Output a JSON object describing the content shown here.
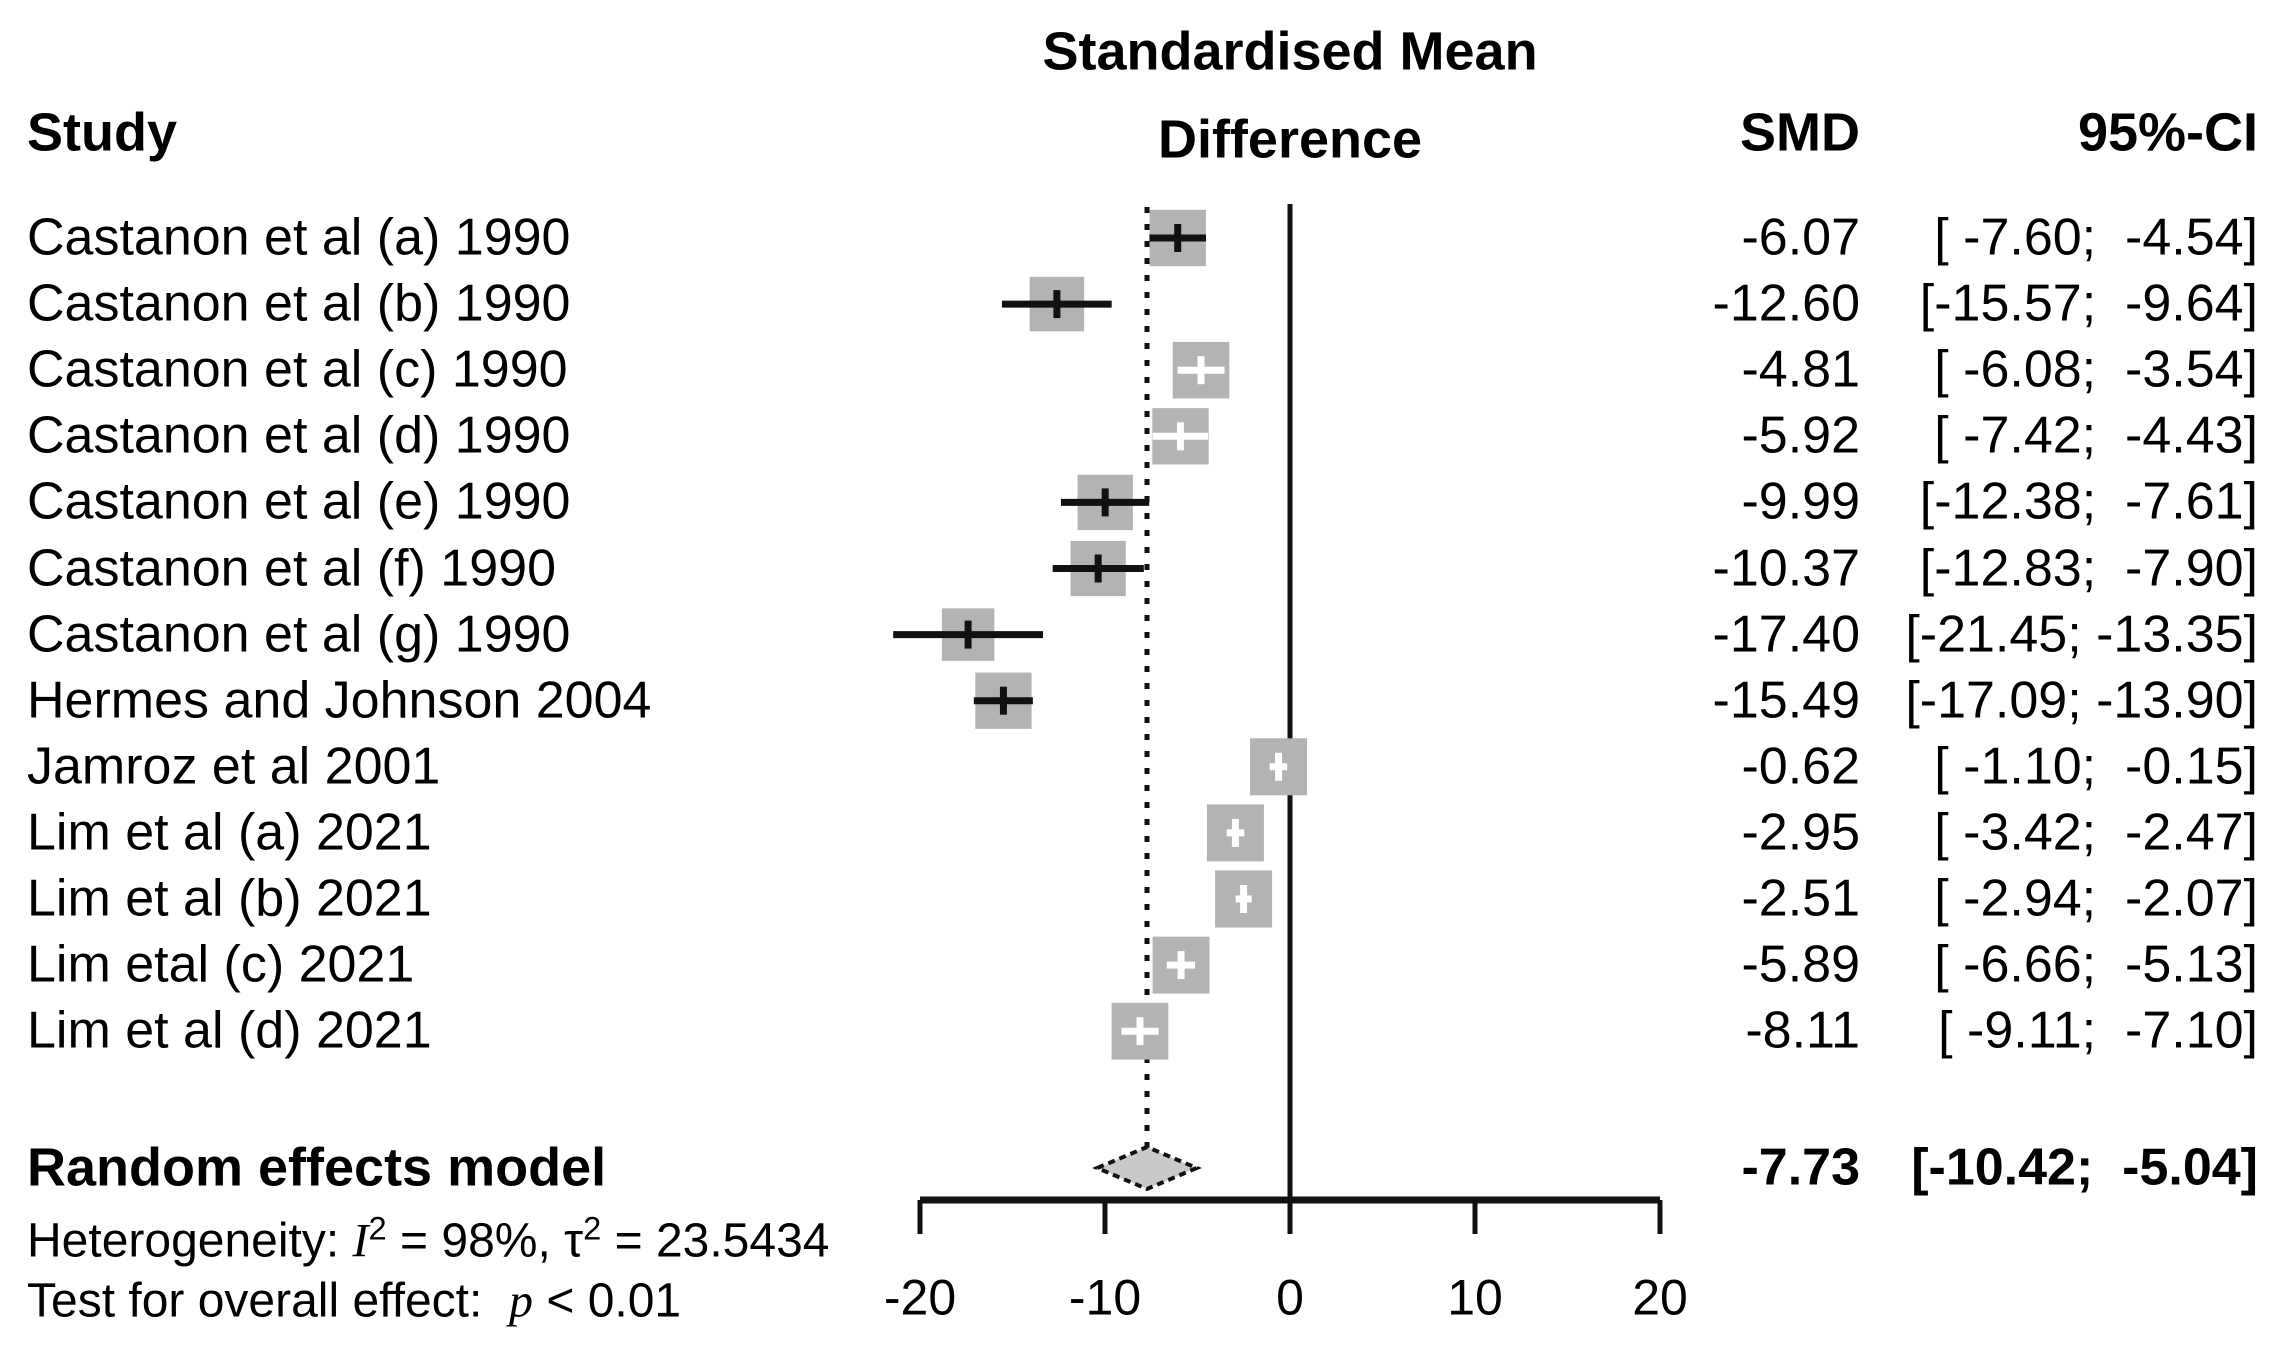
{
  "headers": {
    "study": "Study",
    "effect_line1": "Standardised Mean",
    "effect_line2": "Difference",
    "smd": "SMD",
    "ci": "95%-CI"
  },
  "chart_data": {
    "type": "forest",
    "effect_measure": "Standardised Mean Difference",
    "xlim": [
      -21.5,
      20
    ],
    "x_ticks": [
      {
        "value": -20,
        "label": "-20"
      },
      {
        "value": -10,
        "label": "-10"
      },
      {
        "value": 0,
        "label": "0"
      },
      {
        "value": 10,
        "label": "10"
      },
      {
        "value": 20,
        "label": "20"
      }
    ],
    "zero_line_at": 0,
    "dashed_line_at": -7.73,
    "studies": [
      {
        "label": "Castanon et al (a) 1990",
        "smd": -6.07,
        "ci_lo": -7.6,
        "ci_hi": -4.54,
        "smd_text": "-6.07",
        "ci_text": "[ -7.60;  -4.54]"
      },
      {
        "label": "Castanon et al (b) 1990",
        "smd": -12.6,
        "ci_lo": -15.57,
        "ci_hi": -9.64,
        "smd_text": "-12.60",
        "ci_text": "[-15.57;  -9.64]"
      },
      {
        "label": "Castanon et al (c) 1990",
        "smd": -4.81,
        "ci_lo": -6.08,
        "ci_hi": -3.54,
        "smd_text": "-4.81",
        "ci_text": "[ -6.08;  -3.54]"
      },
      {
        "label": "Castanon et al (d) 1990",
        "smd": -5.92,
        "ci_lo": -7.42,
        "ci_hi": -4.43,
        "smd_text": "-5.92",
        "ci_text": "[ -7.42;  -4.43]"
      },
      {
        "label": "Castanon et al (e) 1990",
        "smd": -9.99,
        "ci_lo": -12.38,
        "ci_hi": -7.61,
        "smd_text": "-9.99",
        "ci_text": "[-12.38;  -7.61]"
      },
      {
        "label": "Castanon et al (f) 1990",
        "smd": -10.37,
        "ci_lo": -12.83,
        "ci_hi": -7.9,
        "smd_text": "-10.37",
        "ci_text": "[-12.83;  -7.90]"
      },
      {
        "label": "Castanon et al (g) 1990",
        "smd": -17.4,
        "ci_lo": -21.45,
        "ci_hi": -13.35,
        "smd_text": "-17.40",
        "ci_text": "[-21.45; -13.35]"
      },
      {
        "label": "Hermes and Johnson 2004",
        "smd": -15.49,
        "ci_lo": -17.09,
        "ci_hi": -13.9,
        "smd_text": "-15.49",
        "ci_text": "[-17.09; -13.90]"
      },
      {
        "label": "Jamroz et al 2001",
        "smd": -0.62,
        "ci_lo": -1.1,
        "ci_hi": -0.15,
        "smd_text": "-0.62",
        "ci_text": "[ -1.10;  -0.15]"
      },
      {
        "label": "Lim et al (a) 2021",
        "smd": -2.95,
        "ci_lo": -3.42,
        "ci_hi": -2.47,
        "smd_text": "-2.95",
        "ci_text": "[ -3.42;  -2.47]"
      },
      {
        "label": "Lim et al (b) 2021",
        "smd": -2.51,
        "ci_lo": -2.94,
        "ci_hi": -2.07,
        "smd_text": "-2.51",
        "ci_text": "[ -2.94;  -2.07]"
      },
      {
        "label": "Lim etal (c) 2021",
        "smd": -5.89,
        "ci_lo": -6.66,
        "ci_hi": -5.13,
        "smd_text": "-5.89",
        "ci_text": "[ -6.66;  -5.13]"
      },
      {
        "label": "Lim et al (d) 2021",
        "smd": -8.11,
        "ci_lo": -9.11,
        "ci_hi": -7.1,
        "smd_text": "-8.11",
        "ci_text": "[ -9.11;  -7.10]"
      }
    ],
    "summary": {
      "label": "Random effects model",
      "smd": -7.73,
      "ci_lo": -10.42,
      "ci_hi": -5.04,
      "smd_text": "-7.73",
      "ci_text": "[-10.42;  -5.04]"
    },
    "heterogeneity": {
      "I2": "98%",
      "tau2": "23.5434"
    },
    "overall_effect": "p < 0.01",
    "style": {
      "square_fill": "#b3b3b3",
      "diamond_fill": "#c9c9c9",
      "line_color": "#111111",
      "white_marker": "#ffffff",
      "background": "#ffffff"
    }
  },
  "footer": {
    "heterogeneity": {
      "prefix": "Heterogeneity: ",
      "stat1": "I",
      "stat1_sup": "2",
      "mid": " = 98%, ",
      "stat2": "τ",
      "stat2_sup": "2",
      "tail": " = 23.5434"
    },
    "test": {
      "prefix": "Test for overall effect:  ",
      "stat": "p",
      "tail": " < 0.01"
    }
  }
}
